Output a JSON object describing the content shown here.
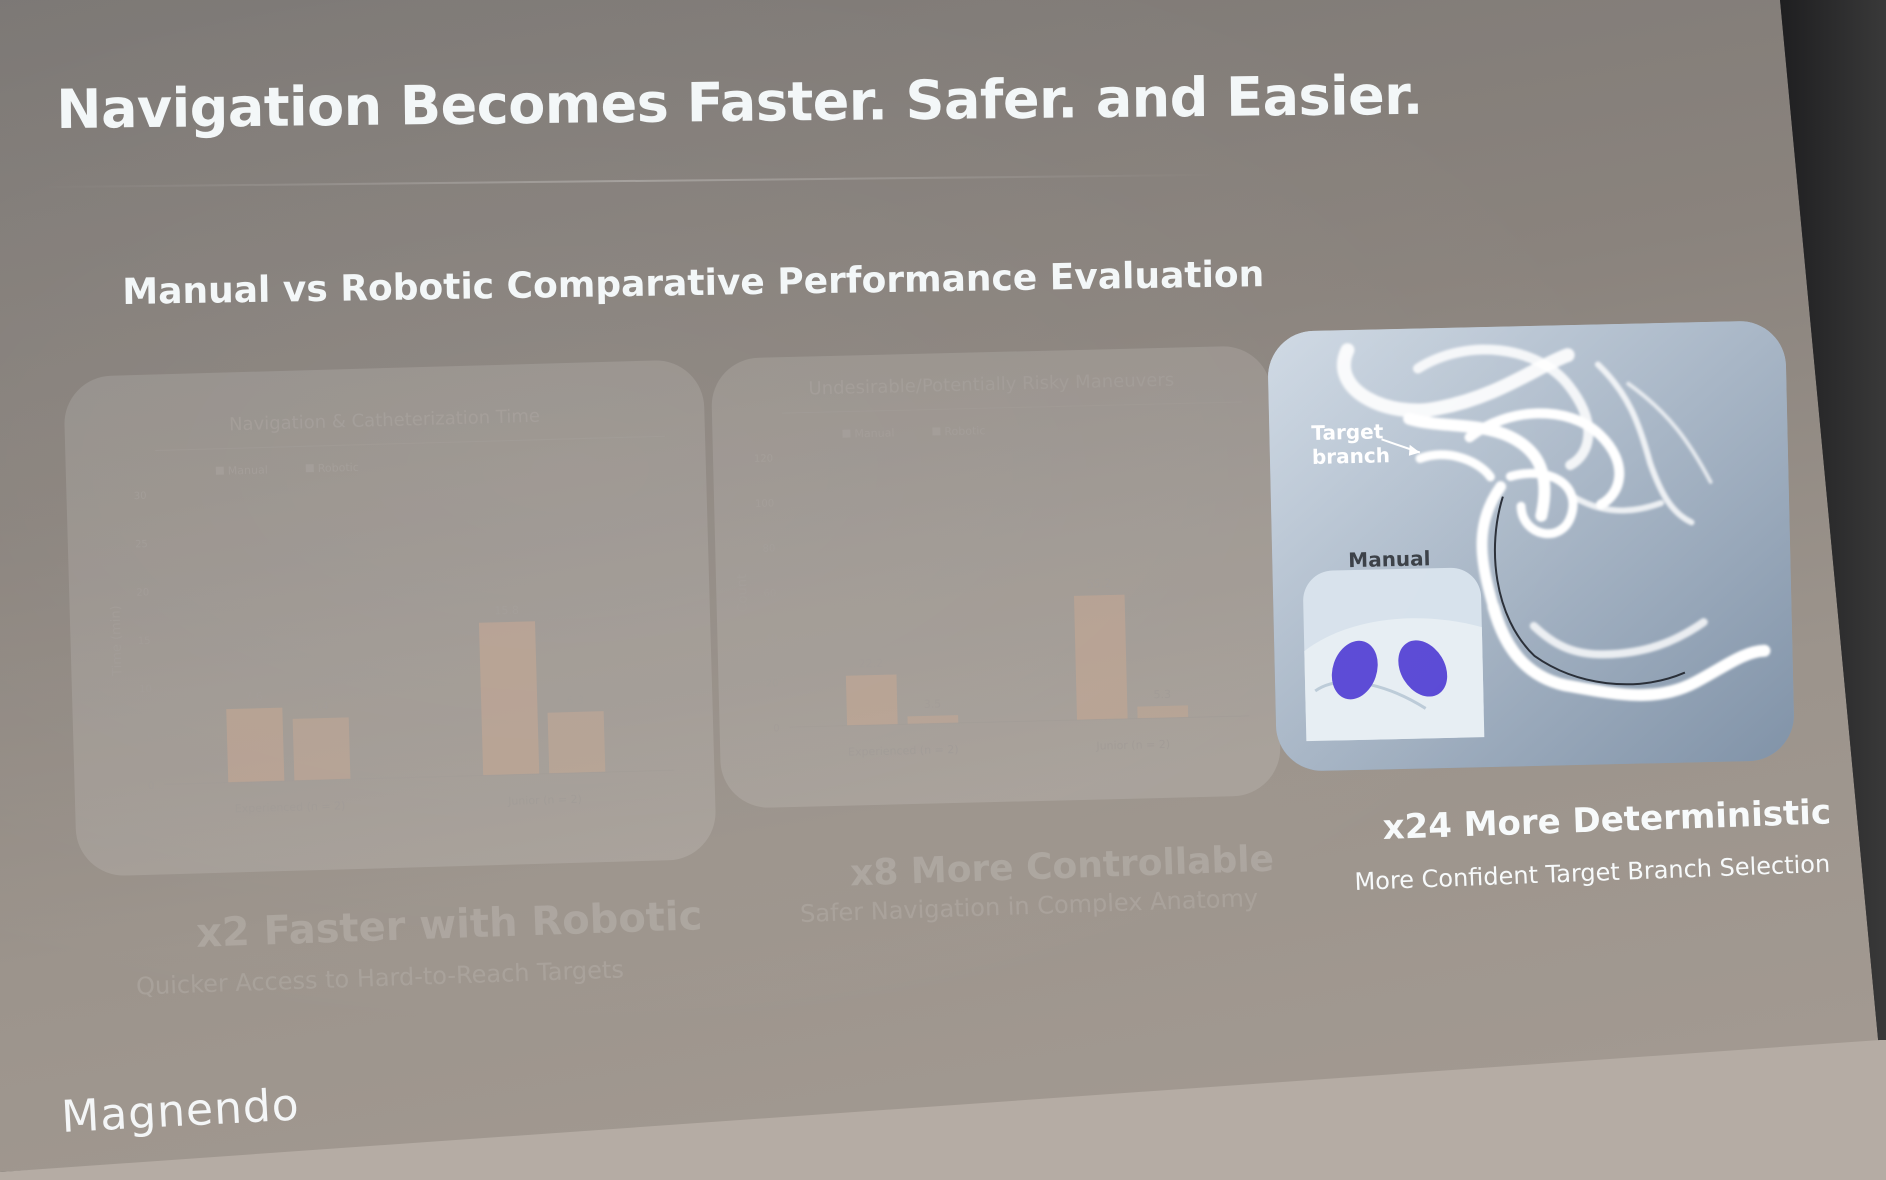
{
  "slide": {
    "title": "Navigation Becomes Faster. Safer. and Easier.",
    "subtitle": "Manual vs Robotic Comparative Performance Evaluation",
    "logo": "Magnendo"
  },
  "chart_data": [
    {
      "type": "bar",
      "title": "Navigation & Catheterization Time",
      "ylabel": "Time (min)",
      "xlabel": "",
      "categories": [
        "Experienced (n = 2)",
        "Junior (n = 2)"
      ],
      "series": [
        {
          "name": "Manual",
          "values": [
            7.6,
            15.8
          ]
        },
        {
          "name": "Robotic",
          "values": [
            6.4,
            6.3
          ]
        }
      ],
      "ylim": [
        0,
        30
      ],
      "yticks": [
        "0",
        "5",
        "10",
        "15",
        "20",
        "25",
        "30"
      ],
      "legend": "top-left",
      "grid": false
    },
    {
      "type": "bar",
      "title": "Undesirable/Potentially Risky Maneuvers",
      "ylabel": "Count",
      "xlabel": "",
      "categories": [
        "Experienced (n = 2)",
        "Junior (n = 2)"
      ],
      "series": [
        {
          "name": "Manual",
          "values": [
            22.2,
            55.2
          ]
        },
        {
          "name": "Robotic",
          "values": [
            3.5,
            5.3
          ]
        }
      ],
      "ylim": [
        0,
        120
      ],
      "yticks": [
        "0",
        "20",
        "40",
        "60",
        "80",
        "100",
        "120"
      ],
      "legend": "top-left",
      "grid": false
    }
  ],
  "panels": [
    {
      "headline": "x2 Faster with Robotic",
      "sub": "Quicker Access to Hard-to-Reach Targets"
    },
    {
      "headline": "x8 More Controllable",
      "sub": "Safer Navigation in Complex Anatomy"
    },
    {
      "headline": "x24 More Deterministic",
      "sub": "More Confident Target Branch Selection"
    }
  ],
  "image_panel": {
    "annotation_target": "Target",
    "annotation_branch": "branch",
    "annotation_manual": "Manual"
  },
  "colors": {
    "bar_manual": "#c7a58f",
    "bar_robotic": "#c2a692",
    "title_text": "#f3f7f8",
    "gloves": "#5b4ad6"
  }
}
